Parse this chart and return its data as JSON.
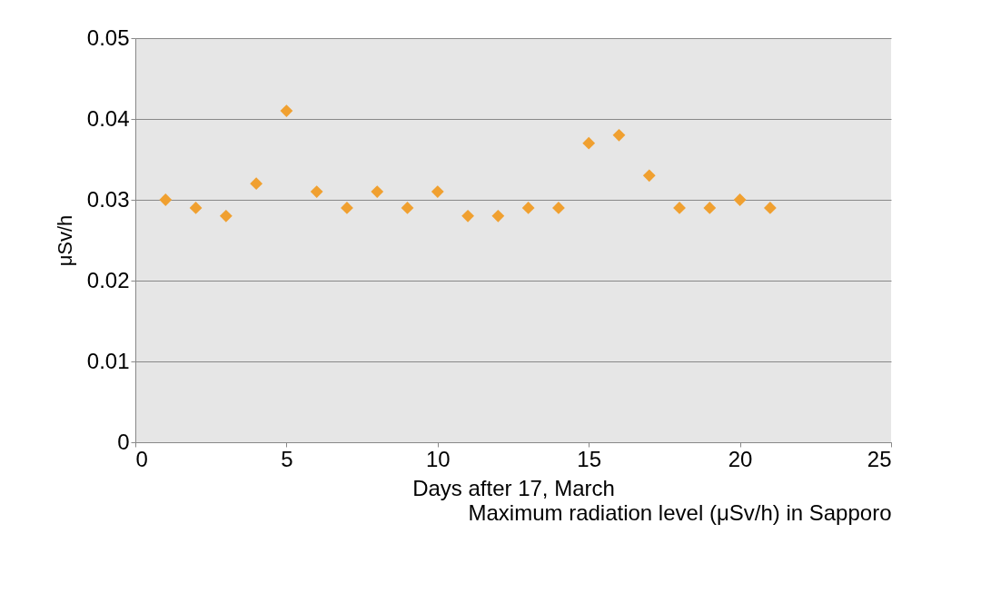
{
  "chart_data": {
    "type": "scatter",
    "xlabel": "Days after 17, March",
    "ylabel": "μSv/h",
    "annotations": [
      "Maximum radiation level (μSv/h) in Sapporo"
    ],
    "x": [
      1,
      2,
      3,
      4,
      5,
      6,
      7,
      8,
      9,
      10,
      11,
      12,
      13,
      14,
      15,
      16,
      17,
      18,
      19,
      20,
      21
    ],
    "series": [
      {
        "color": "#f0a030",
        "values": [
          0.03,
          0.029,
          0.028,
          0.032,
          0.041,
          0.031,
          0.029,
          0.031,
          0.029,
          0.031,
          0.028,
          0.028,
          0.029,
          0.029,
          0.037,
          0.038,
          0.033,
          0.029,
          0.029,
          0.03,
          0.029
        ]
      }
    ],
    "xlim": [
      0,
      25
    ],
    "xticks": [
      0,
      5,
      10,
      15,
      20,
      25
    ],
    "ylim": [
      0,
      0.05
    ],
    "yticks": [
      0,
      0.01,
      0.02,
      0.03,
      0.04,
      0.05
    ],
    "grid": "y",
    "marker": "diamond"
  }
}
